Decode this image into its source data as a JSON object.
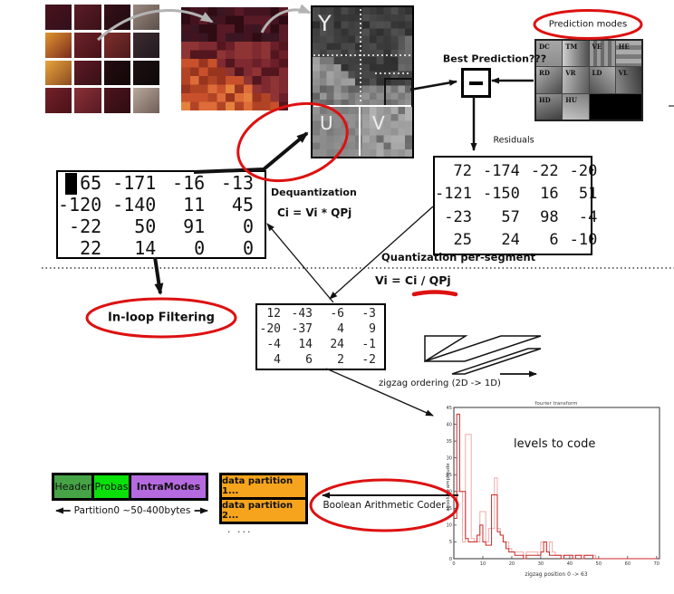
{
  "colors": {
    "accent_red": "#dd1111",
    "partition_orange": "#f6a41d",
    "header_green": "#46a346",
    "probas_green": "#0ae00a",
    "intramodes_purple": "#b56ae0",
    "chart_red": "#cc2a2a",
    "chart_pink": "#f2a9a9"
  },
  "yuv": {
    "y": "Y",
    "u": "U",
    "v": "V"
  },
  "prediction": {
    "modes_label": "Prediction modes",
    "best_label": "Best Prediction???",
    "modes": [
      "DC",
      "TM",
      "VE",
      "HE",
      "RD",
      "VR",
      "LD",
      "VL",
      "HD",
      "HU"
    ]
  },
  "residuals": {
    "label": "Residuals",
    "matrix": [
      [
        72,
        -174,
        -22,
        -20
      ],
      [
        -121,
        -150,
        16,
        51
      ],
      [
        -23,
        57,
        98,
        -4
      ],
      [
        25,
        24,
        6,
        -10
      ]
    ]
  },
  "reconstructed": {
    "matrix": [
      [
        65,
        -171,
        -16,
        -13
      ],
      [
        -120,
        -140,
        11,
        45
      ],
      [
        -22,
        50,
        91,
        0
      ],
      [
        22,
        14,
        0,
        0
      ]
    ]
  },
  "quantized": {
    "matrix": [
      [
        12,
        -43,
        -6,
        -3
      ],
      [
        -20,
        -37,
        4,
        9
      ],
      [
        -4,
        14,
        24,
        -1
      ],
      [
        4,
        6,
        2,
        -2
      ]
    ]
  },
  "labels": {
    "dequantization": "Dequantization",
    "dequant_formula": "Ci = Vi * QPj",
    "quantization": "Quantization per-segment",
    "quant_formula": "Vi = Ci / QPj",
    "inloop": "In-loop Filtering",
    "zigzag": "zigzag ordering  (2D -> 1D)",
    "bac": "Boolean Arithmetic Coder"
  },
  "bitstream": {
    "header": "Header",
    "probas": "Probas",
    "intramodes": "IntraModes",
    "partition0": "Partition0 ~50-400bytes",
    "partition1": "data partition 1...",
    "partition2": "data partition 2...",
    "more": ". ..."
  },
  "chart_data": {
    "type": "step-line",
    "title": "fourier transform",
    "xlabel": "zigzag position  0 -> 63",
    "ylabel": "absolute amplitude",
    "annotation": "levels to code",
    "xlim": [
      0,
      70
    ],
    "ylim": [
      0,
      45
    ],
    "x_ticks": [
      0,
      10,
      20,
      30,
      40,
      50,
      60,
      70
    ],
    "y_ticks": [
      0,
      5,
      10,
      15,
      20,
      25,
      30,
      35,
      40,
      45
    ],
    "legend": "none",
    "grid": false,
    "series": [
      {
        "name": "light-pink",
        "color": "#f2a9a9",
        "values": [
          17,
          20,
          20,
          5,
          37,
          37,
          6,
          5,
          5,
          14,
          14,
          5,
          9,
          9,
          24,
          9,
          7,
          5,
          5,
          3,
          2,
          2,
          2,
          2,
          1,
          2,
          2,
          2,
          2,
          1,
          5,
          5,
          2,
          5,
          2,
          1,
          1,
          1,
          1,
          1,
          1,
          1,
          1,
          1,
          1,
          1,
          1,
          1,
          1,
          0
        ]
      },
      {
        "name": "dark-red",
        "color": "#cc2a2a",
        "values": [
          12,
          43,
          20,
          20,
          6,
          5,
          5,
          5,
          7,
          10,
          5,
          4,
          4,
          19,
          19,
          8,
          7,
          5,
          3,
          2,
          2,
          1,
          1,
          1,
          0,
          1,
          1,
          1,
          1,
          1,
          2,
          5,
          2,
          1,
          1,
          1,
          1,
          0,
          1,
          1,
          1,
          0,
          1,
          1,
          0,
          1,
          1,
          1,
          0,
          0
        ]
      }
    ]
  }
}
